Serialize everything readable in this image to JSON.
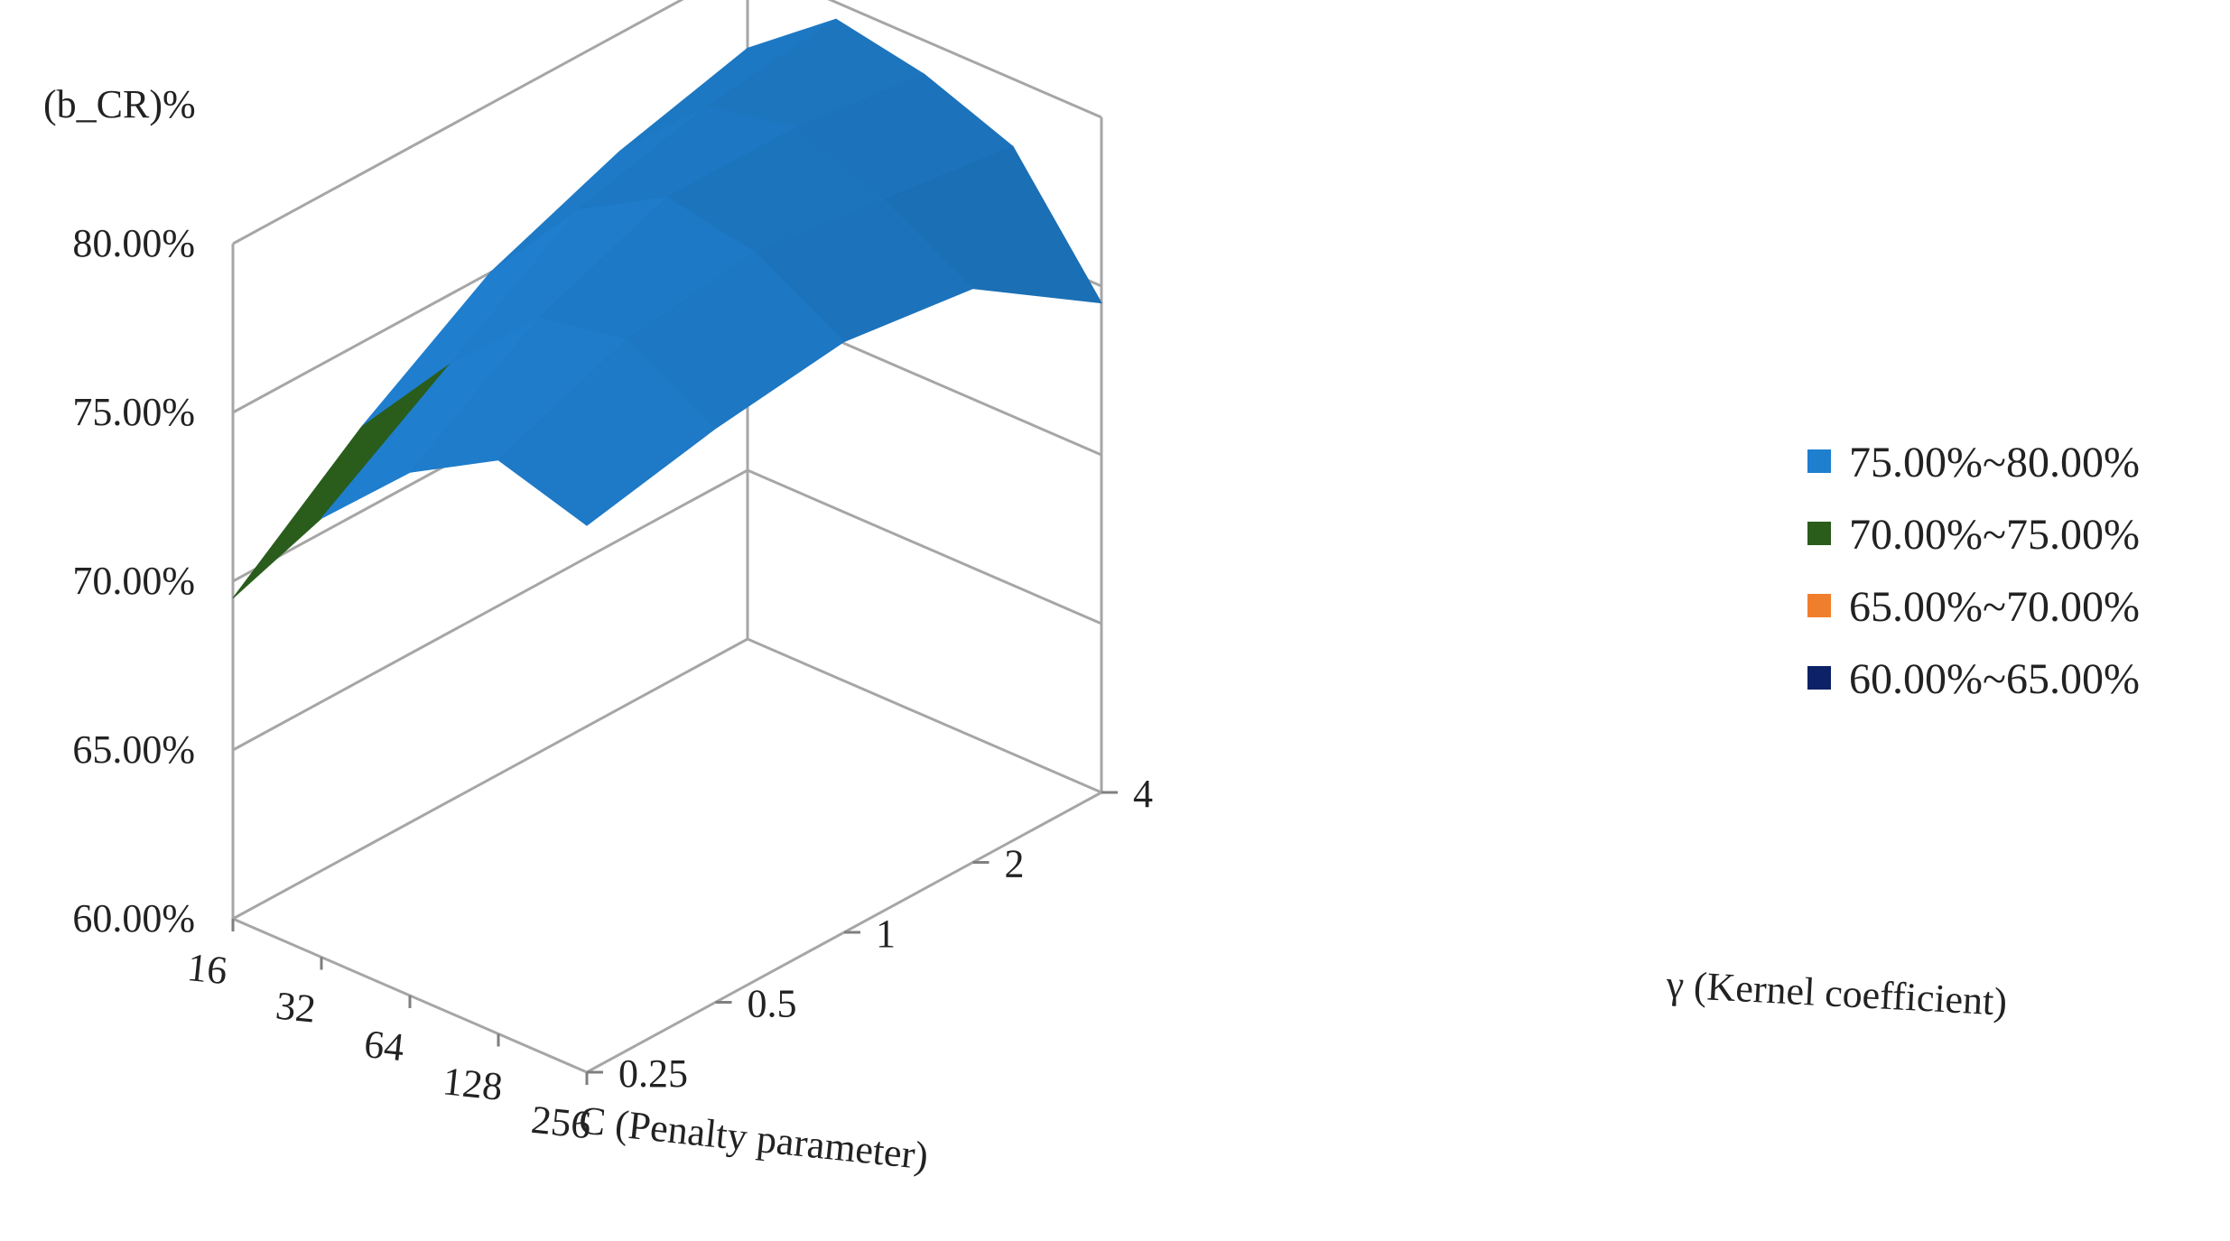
{
  "chart_data": {
    "type": "surface3d",
    "z_title": "(b_CR)%",
    "xlabel": "C (Penalty parameter)",
    "ylabel": "γ (Kernel coefficient)",
    "x_categories": [
      "16",
      "32",
      "64",
      "128",
      "256"
    ],
    "y_categories": [
      "0.25",
      "0.5",
      "1",
      "2",
      "4"
    ],
    "z_ticks": [
      "60.00%",
      "65.00%",
      "70.00%",
      "75.00%",
      "80.00%"
    ],
    "zlim": [
      60,
      80
    ],
    "legend": [
      {
        "label": "75.00%~80.00%",
        "color": "#1f7fcf"
      },
      {
        "label": "70.00%~75.00%",
        "color": "#2a5d1c"
      },
      {
        "label": "65.00%~70.00%",
        "color": "#f07f2d"
      },
      {
        "label": "60.00%~65.00%",
        "color": "#0d2266"
      }
    ],
    "legend_position": "right",
    "z_values_by_gamma": [
      {
        "gamma": "0.25",
        "values": [
          69.5,
          73.0,
          75.5,
          77.0,
          76.2
        ]
      },
      {
        "gamma": "0.5",
        "values": [
          72.5,
          75.5,
          78.0,
          78.5,
          77.0
        ]
      },
      {
        "gamma": "1",
        "values": [
          75.0,
          78.0,
          79.5,
          79.0,
          77.5
        ]
      },
      {
        "gamma": "2",
        "values": [
          76.5,
          79.0,
          79.5,
          78.5,
          77.0
        ]
      },
      {
        "gamma": "4",
        "values": [
          77.5,
          79.5,
          79.0,
          78.0,
          74.5
        ]
      }
    ]
  }
}
